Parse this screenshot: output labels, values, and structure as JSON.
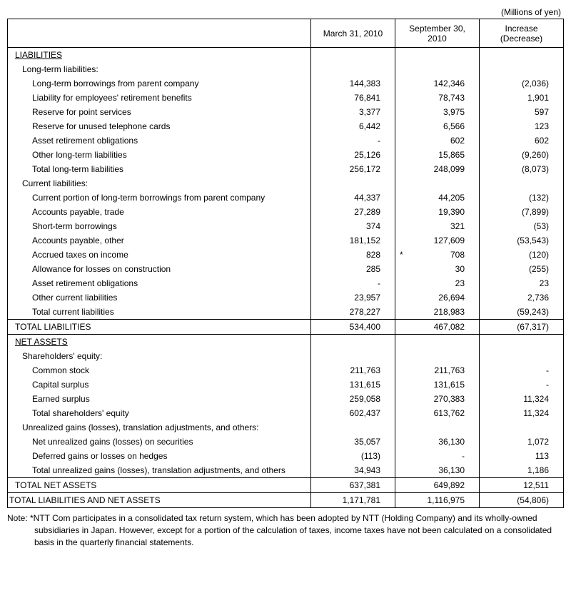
{
  "unit_label": "(Millions of yen)",
  "headers": {
    "col1": "March 31, 2010",
    "col2": "September 30, 2010",
    "col3_line1": "Increase",
    "col3_line2": "(Decrease)"
  },
  "sections": {
    "liabilities": {
      "title": "LIABILITIES",
      "long_term": {
        "title": "Long-term liabilities:",
        "items": [
          {
            "label": "Long-term borrowings from parent company",
            "c1": "144,383",
            "c2": "142,346",
            "c3": "(2,036)"
          },
          {
            "label": "Liability for employees' retirement benefits",
            "c1": "76,841",
            "c2": "78,743",
            "c3": "1,901"
          },
          {
            "label": "Reserve for point services",
            "c1": "3,377",
            "c2": "3,975",
            "c3": "597"
          },
          {
            "label": "Reserve for unused telephone cards",
            "c1": "6,442",
            "c2": "6,566",
            "c3": "123"
          },
          {
            "label": "Asset retirement obligations",
            "c1": "-",
            "c2": "602",
            "c3": "602"
          },
          {
            "label": "Other long-term liabilities",
            "c1": "25,126",
            "c2": "15,865",
            "c3": "(9,260)"
          },
          {
            "label": "Total long-term liabilities",
            "c1": "256,172",
            "c2": "248,099",
            "c3": "(8,073)"
          }
        ]
      },
      "current": {
        "title": "Current liabilities:",
        "items": [
          {
            "label": "Current portion of long-term borrowings from parent company",
            "c1": "44,337",
            "c2": "44,205",
            "c3": "(132)"
          },
          {
            "label": "Accounts payable, trade",
            "c1": "27,289",
            "c2": "19,390",
            "c3": "(7,899)"
          },
          {
            "label": "Short-term borrowings",
            "c1": "374",
            "c2": "321",
            "c3": "(53)"
          },
          {
            "label": "Accounts payable, other",
            "c1": "181,152",
            "c2": "127,609",
            "c3": "(53,543)"
          },
          {
            "label": "Accrued taxes on income",
            "c1": "828",
            "c2": "708",
            "c2star": "*",
            "c3": "(120)"
          },
          {
            "label": "Allowance for losses on construction",
            "c1": "285",
            "c2": "30",
            "c3": "(255)"
          },
          {
            "label": "Asset retirement obligations",
            "c1": "-",
            "c2": "23",
            "c3": "23"
          },
          {
            "label": "Other current liabilities",
            "c1": "23,957",
            "c2": "26,694",
            "c3": "2,736"
          },
          {
            "label": "Total current liabilities",
            "c1": "278,227",
            "c2": "218,983",
            "c3": "(59,243)"
          }
        ]
      },
      "total": {
        "label": "TOTAL LIABILITIES",
        "c1": "534,400",
        "c2": "467,082",
        "c3": "(67,317)"
      }
    },
    "net_assets": {
      "title": "NET ASSETS",
      "equity": {
        "title": "Shareholders' equity:",
        "items": [
          {
            "label": "Common stock",
            "c1": "211,763",
            "c2": "211,763",
            "c3": "-"
          },
          {
            "label": "Capital surplus",
            "c1": "131,615",
            "c2": "131,615",
            "c3": "-"
          },
          {
            "label": "Earned surplus",
            "c1": "259,058",
            "c2": "270,383",
            "c3": "11,324"
          },
          {
            "label": "Total shareholders' equity",
            "c1": "602,437",
            "c2": "613,762",
            "c3": "11,324"
          }
        ]
      },
      "unrealized": {
        "title": "Unrealized gains (losses), translation adjustments, and others:",
        "items": [
          {
            "label": "Net unrealized gains (losses) on securities",
            "c1": "35,057",
            "c2": "36,130",
            "c3": "1,072"
          },
          {
            "label": "Deferred gains or losses on hedges",
            "c1": "(113)",
            "c2": "-",
            "c3": "113"
          },
          {
            "label": "Total unrealized gains (losses), translation adjustments, and others",
            "c1": "34,943",
            "c2": "36,130",
            "c3": "1,186"
          }
        ]
      },
      "total": {
        "label": "TOTAL NET ASSETS",
        "c1": "637,381",
        "c2": "649,892",
        "c3": "12,511"
      }
    },
    "grand_total": {
      "label": "TOTAL LIABILITIES AND NET ASSETS",
      "c1": "1,171,781",
      "c2": "1,116,975",
      "c3": "(54,806)"
    }
  },
  "note": {
    "prefix": "Note: ",
    "line1": "*NTT Com participates in a consolidated tax return system, which has been adopted by NTT (Holding Company) and its wholly-owned",
    "line2": "subsidiaries in Japan. However, except for a portion of the calculation of taxes, income taxes have not been calculated on a consolidated",
    "line3": "basis in the quarterly financial statements."
  }
}
